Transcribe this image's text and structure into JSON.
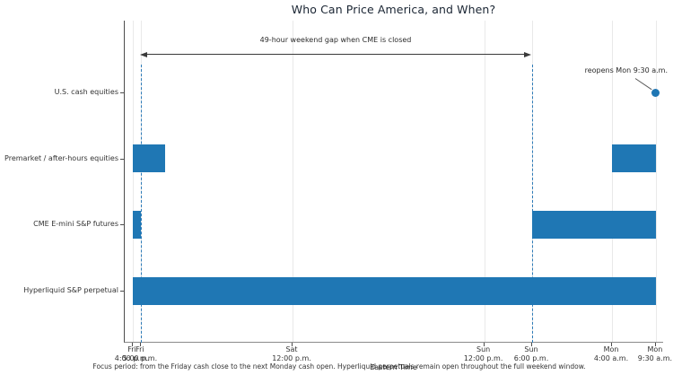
{
  "chart_data": {
    "type": "bar",
    "subtype": "gantt-timeline (broken horizontal bars of market open hours across one weekend)",
    "title": "Who Can Price America, and When?",
    "xlabel": "Eastern Time",
    "footnote": "Focus period: from the Friday cash close to the next Monday cash open. Hyperliquid perpetuals remain open throughout the full weekend window.",
    "x_unit": "hours after Friday 4:00 p.m. ET",
    "x_axis_range_hours": [
      -1,
      66.5
    ],
    "grid": "vertical gridlines at x ticks only",
    "legend": "none",
    "x_ticks": [
      {
        "day": "Fri",
        "time": "4:00 p.m.",
        "hours": 0
      },
      {
        "day": "Fri",
        "time": "5:00 p.m.",
        "hours": 1
      },
      {
        "day": "Sat",
        "time": "12:00 p.m.",
        "hours": 20
      },
      {
        "day": "Sun",
        "time": "12:00 p.m.",
        "hours": 44
      },
      {
        "day": "Sun",
        "time": "6:00 p.m.",
        "hours": 50
      },
      {
        "day": "Mon",
        "time": "4:00 a.m.",
        "hours": 60
      },
      {
        "day": "Mon",
        "time": "9:30 a.m.",
        "hours": 65.5
      }
    ],
    "rows": [
      {
        "label": "U.S. cash equities",
        "open_intervals_hours": [],
        "marker_hours": 65.5
      },
      {
        "label": "Premarket / after-hours equities",
        "open_intervals_hours": [
          [
            0,
            4
          ],
          [
            60,
            65.5
          ]
        ]
      },
      {
        "label": "CME E-mini S&P futures",
        "open_intervals_hours": [
          [
            0,
            1
          ],
          [
            50,
            65.5
          ]
        ]
      },
      {
        "label": "Hyperliquid S&P perpetual",
        "open_intervals_hours": [
          [
            0,
            65.5
          ]
        ]
      }
    ],
    "dashed_guides_hours": [
      1,
      50
    ],
    "gap_annotation": {
      "text": "49-hour weekend gap when CME is closed",
      "from_hours": 1,
      "to_hours": 50
    },
    "reopen_annotation": {
      "text": "reopens Mon 9:30 a.m.",
      "points_to_hours": 65.5,
      "points_to_row": "U.S. cash equities"
    },
    "colors": {
      "bar": "#1f77b4",
      "marker": "#1f77b4",
      "dashed_guide": "#2d7bb8",
      "gridline": "#e9e9e9",
      "axis": "#4d4d4d",
      "arrow": "#3a3a3a",
      "title": "#1a2533",
      "text": "#333333"
    }
  }
}
